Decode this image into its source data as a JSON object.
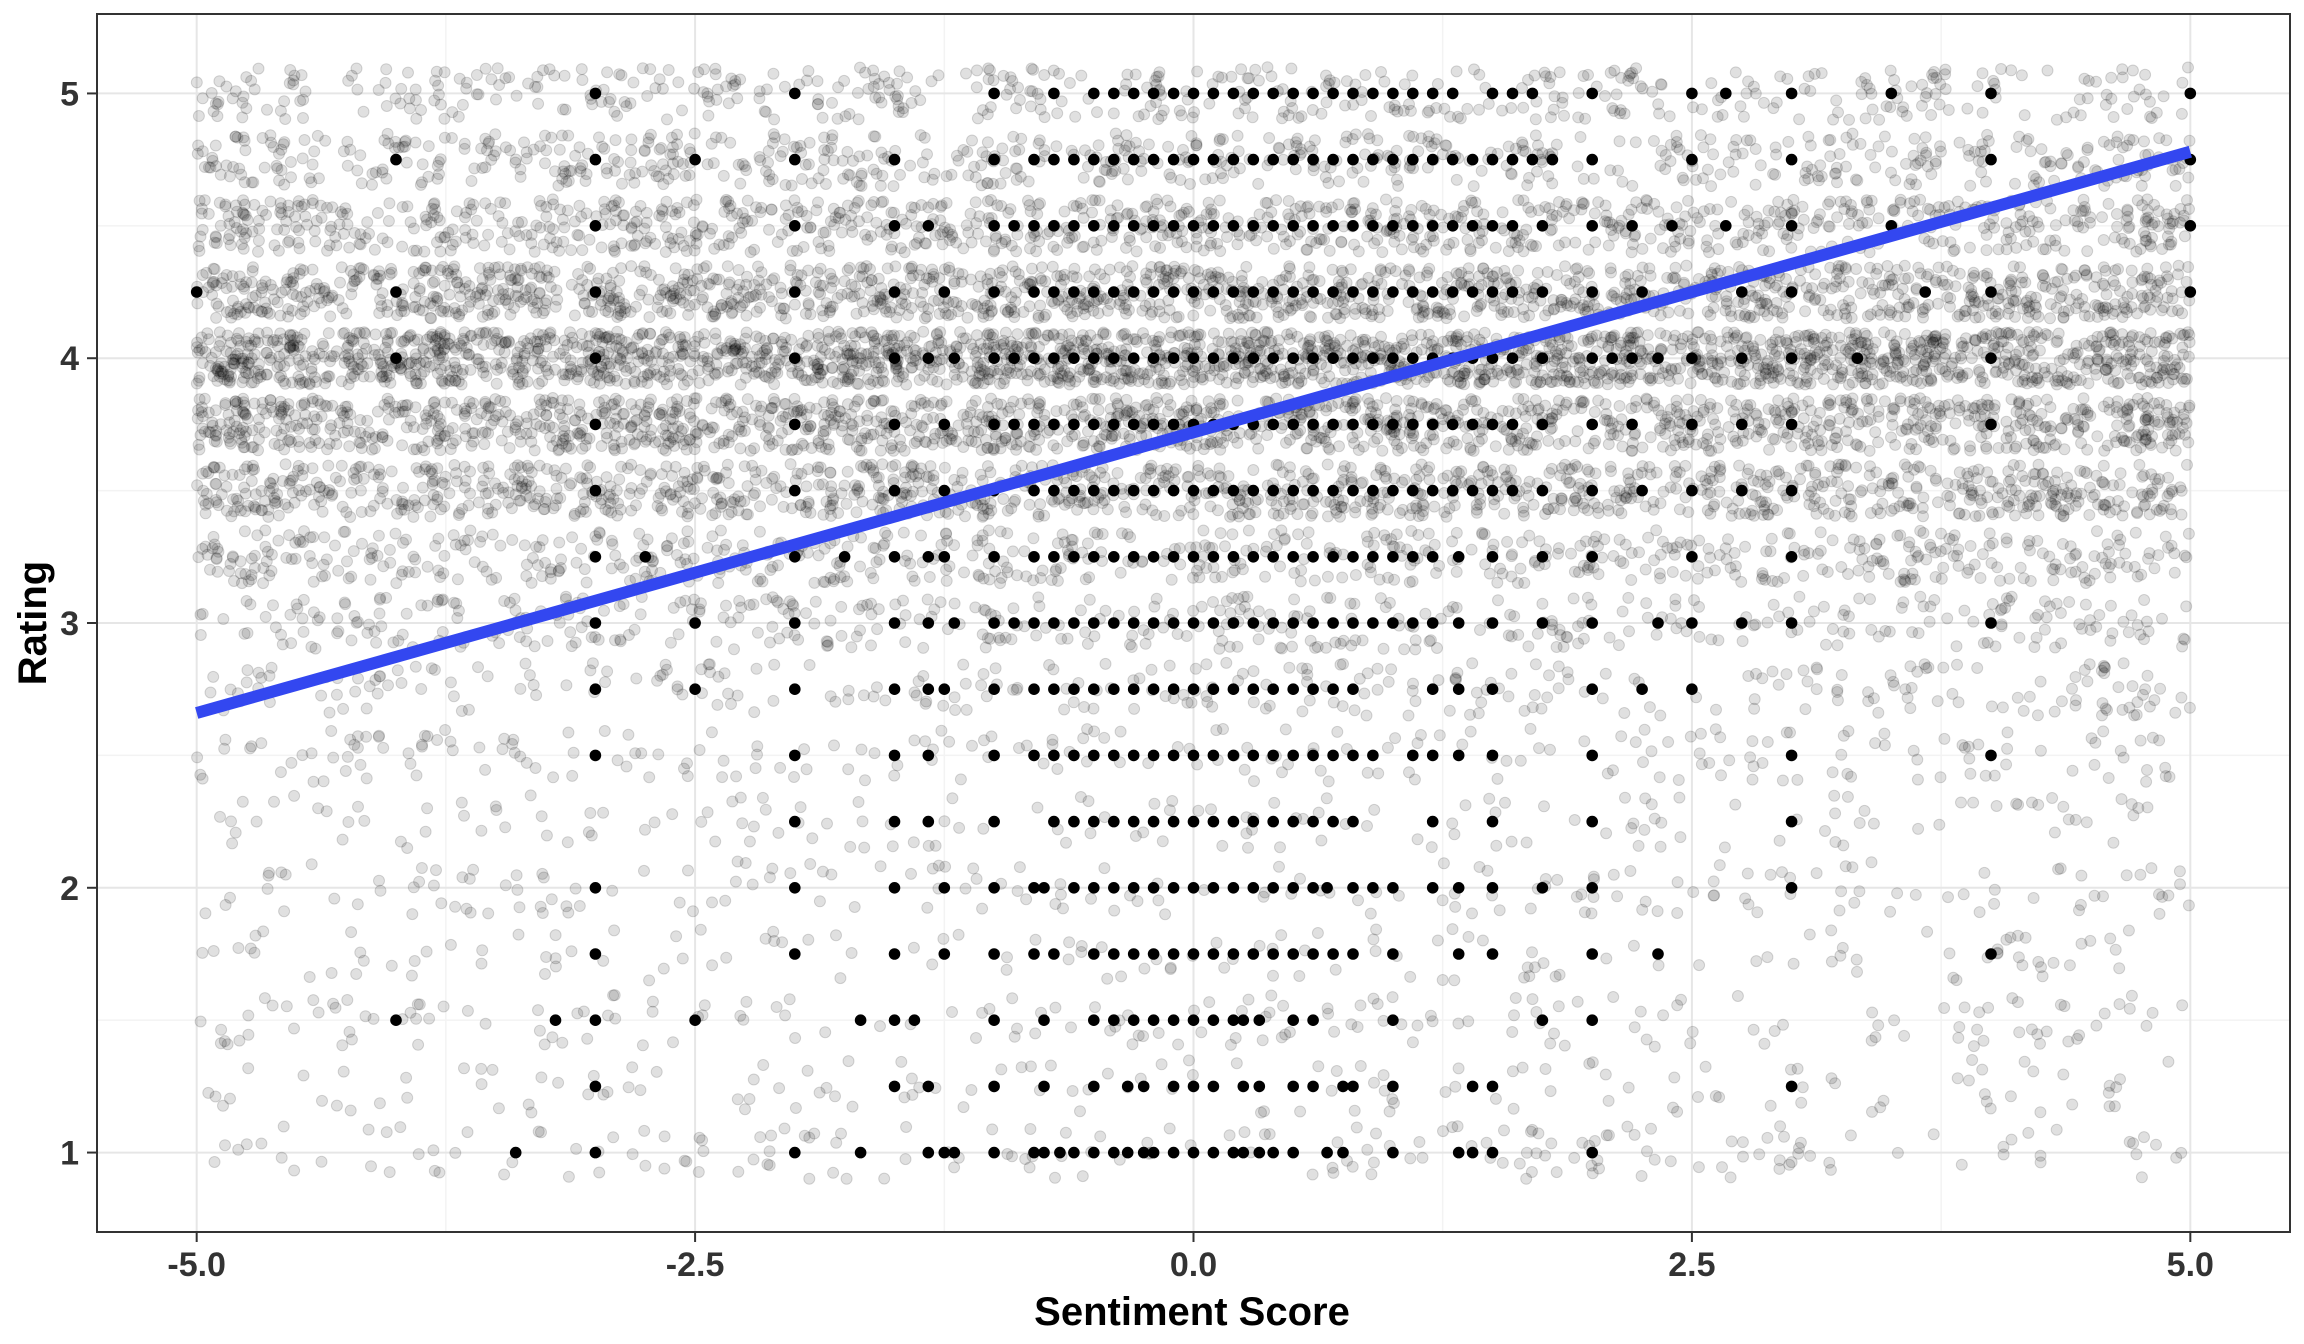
{
  "chart_data": {
    "type": "scatter",
    "title": "",
    "xlabel": "Sentiment Score",
    "ylabel": "Rating",
    "xlim": [
      -5.5,
      5.5
    ],
    "ylim": [
      0.7,
      5.3
    ],
    "x_ticks": [
      {
        "value": -5.0,
        "label": "-5.0"
      },
      {
        "value": -2.5,
        "label": "-2.5"
      },
      {
        "value": 0.0,
        "label": "0.0"
      },
      {
        "value": 2.5,
        "label": "2.5"
      },
      {
        "value": 5.0,
        "label": "5.0"
      }
    ],
    "y_ticks": [
      {
        "value": 1,
        "label": "1"
      },
      {
        "value": 2,
        "label": "2"
      },
      {
        "value": 3,
        "label": "3"
      },
      {
        "value": 4,
        "label": "4"
      },
      {
        "value": 5,
        "label": "5"
      }
    ],
    "grid": true,
    "colors": {
      "jitter_points": "#000000",
      "exact_points": "#000000",
      "trend_line": "#3347f0",
      "panel_border": "#333333",
      "grid_major": "#e6e6e6",
      "grid_minor": "#f3f3f3"
    },
    "trend_line": {
      "type": "linear",
      "x": [
        -5.0,
        5.0
      ],
      "y": [
        2.66,
        4.78
      ]
    },
    "exact_points": [
      {
        "y": 5.0,
        "x": [
          -3.0,
          -2.0,
          -1.0,
          -0.7,
          -0.5,
          -0.4,
          -0.3,
          -0.2,
          -0.1,
          0.0,
          0.1,
          0.2,
          0.3,
          0.4,
          0.5,
          0.6,
          0.7,
          0.8,
          0.9,
          1.0,
          1.1,
          1.2,
          1.3,
          1.5,
          1.6,
          1.7,
          2.0,
          2.5,
          2.67,
          3.0,
          3.5,
          4.0,
          5.0
        ]
      },
      {
        "y": 4.75,
        "x": [
          -4.0,
          -3.0,
          -2.5,
          -2.0,
          -1.5,
          -1.0,
          -0.8,
          -0.7,
          -0.6,
          -0.5,
          -0.4,
          -0.3,
          -0.2,
          -0.1,
          0.0,
          0.1,
          0.2,
          0.3,
          0.4,
          0.5,
          0.6,
          0.7,
          0.8,
          0.9,
          1.0,
          1.1,
          1.2,
          1.3,
          1.4,
          1.5,
          1.6,
          1.7,
          1.8,
          2.0,
          2.5,
          3.0,
          4.0,
          5.0
        ]
      },
      {
        "y": 4.5,
        "x": [
          -3.0,
          -2.0,
          -1.5,
          -1.33,
          -1.0,
          -0.9,
          -0.8,
          -0.7,
          -0.6,
          -0.5,
          -0.4,
          -0.3,
          -0.2,
          -0.1,
          0.0,
          0.1,
          0.2,
          0.3,
          0.4,
          0.5,
          0.6,
          0.7,
          0.8,
          0.9,
          1.0,
          1.1,
          1.2,
          1.3,
          1.4,
          1.5,
          1.6,
          1.75,
          2.0,
          2.2,
          2.4,
          2.67,
          3.0,
          3.5,
          5.0
        ]
      },
      {
        "y": 4.25,
        "x": [
          -5.0,
          -4.0,
          -3.0,
          -2.0,
          -1.5,
          -1.25,
          -1.0,
          -0.8,
          -0.7,
          -0.6,
          -0.5,
          -0.4,
          -0.3,
          -0.2,
          -0.1,
          0.0,
          0.1,
          0.2,
          0.3,
          0.4,
          0.5,
          0.6,
          0.7,
          0.8,
          0.9,
          1.0,
          1.1,
          1.2,
          1.3,
          1.4,
          1.5,
          1.6,
          1.75,
          2.0,
          2.25,
          2.5,
          2.75,
          3.0,
          3.67,
          4.0,
          5.0
        ]
      },
      {
        "y": 4.0,
        "x": [
          -4.0,
          -3.0,
          -2.0,
          -1.5,
          -1.33,
          -1.2,
          -1.0,
          -0.9,
          -0.8,
          -0.7,
          -0.6,
          -0.5,
          -0.4,
          -0.3,
          -0.2,
          -0.1,
          0.0,
          0.1,
          0.2,
          0.3,
          0.4,
          0.5,
          0.6,
          0.7,
          0.8,
          0.9,
          1.0,
          1.1,
          1.2,
          1.3,
          1.4,
          1.5,
          1.6,
          1.75,
          2.0,
          2.1,
          2.2,
          2.33,
          2.5,
          2.75,
          3.0,
          3.33,
          4.0
        ]
      },
      {
        "y": 3.75,
        "x": [
          -3.0,
          -2.0,
          -1.5,
          -1.25,
          -1.0,
          -0.9,
          -0.8,
          -0.7,
          -0.6,
          -0.5,
          -0.4,
          -0.3,
          -0.2,
          -0.1,
          0.0,
          0.1,
          0.2,
          0.3,
          0.4,
          0.5,
          0.6,
          0.7,
          0.8,
          0.9,
          1.0,
          1.1,
          1.2,
          1.3,
          1.4,
          1.5,
          1.6,
          1.75,
          2.0,
          2.2,
          2.5,
          2.75,
          3.0,
          4.0
        ]
      },
      {
        "y": 3.5,
        "x": [
          -3.0,
          -2.0,
          -1.5,
          -1.25,
          -1.0,
          -0.8,
          -0.7,
          -0.6,
          -0.5,
          -0.4,
          -0.3,
          -0.2,
          -0.1,
          0.0,
          0.1,
          0.2,
          0.3,
          0.4,
          0.5,
          0.6,
          0.7,
          0.8,
          0.9,
          1.0,
          1.1,
          1.2,
          1.3,
          1.4,
          1.5,
          1.6,
          1.75,
          2.0,
          2.25,
          2.5,
          2.75,
          3.0
        ]
      },
      {
        "y": 3.25,
        "x": [
          -3.0,
          -2.75,
          -2.0,
          -1.75,
          -1.5,
          -1.33,
          -1.25,
          -1.0,
          -0.8,
          -0.7,
          -0.6,
          -0.5,
          -0.4,
          -0.3,
          -0.2,
          -0.1,
          0.0,
          0.1,
          0.2,
          0.3,
          0.4,
          0.5,
          0.6,
          0.7,
          0.8,
          0.9,
          1.0,
          1.1,
          1.2,
          1.33,
          1.5,
          1.75,
          2.0,
          2.5,
          3.0
        ]
      },
      {
        "y": 3.0,
        "x": [
          -3.0,
          -2.5,
          -2.0,
          -1.5,
          -1.33,
          -1.2,
          -1.0,
          -0.9,
          -0.8,
          -0.7,
          -0.6,
          -0.5,
          -0.4,
          -0.3,
          -0.2,
          -0.1,
          0.0,
          0.1,
          0.2,
          0.3,
          0.4,
          0.5,
          0.6,
          0.7,
          0.8,
          0.9,
          1.0,
          1.1,
          1.2,
          1.33,
          1.5,
          1.75,
          2.0,
          2.33,
          2.5,
          2.75,
          3.0,
          4.0
        ]
      },
      {
        "y": 2.75,
        "x": [
          -3.0,
          -2.5,
          -2.0,
          -1.5,
          -1.33,
          -1.25,
          -1.0,
          -0.8,
          -0.7,
          -0.6,
          -0.5,
          -0.4,
          -0.3,
          -0.2,
          -0.1,
          0.0,
          0.1,
          0.2,
          0.3,
          0.4,
          0.5,
          0.6,
          0.7,
          0.8,
          1.2,
          1.33,
          1.5,
          2.0,
          2.25,
          2.5
        ]
      },
      {
        "y": 2.5,
        "x": [
          -3.0,
          -2.0,
          -1.5,
          -1.33,
          -1.0,
          -0.8,
          -0.7,
          -0.6,
          -0.5,
          -0.4,
          -0.3,
          -0.2,
          -0.1,
          0.0,
          0.1,
          0.2,
          0.3,
          0.4,
          0.5,
          0.6,
          0.7,
          0.8,
          0.9,
          1.1,
          1.2,
          1.33,
          1.5,
          2.0,
          3.0,
          4.0
        ]
      },
      {
        "y": 2.25,
        "x": [
          -2.0,
          -1.5,
          -1.33,
          -1.0,
          -0.7,
          -0.6,
          -0.5,
          -0.4,
          -0.3,
          -0.2,
          -0.1,
          0.0,
          0.1,
          0.2,
          0.3,
          0.4,
          0.5,
          0.6,
          0.7,
          0.8,
          1.2,
          1.5,
          2.0,
          3.0
        ]
      },
      {
        "y": 2.0,
        "x": [
          -3.0,
          -2.0,
          -1.5,
          -1.25,
          -1.0,
          -0.8,
          -0.75,
          -0.6,
          -0.5,
          -0.4,
          -0.3,
          -0.2,
          -0.1,
          0.0,
          0.1,
          0.2,
          0.3,
          0.4,
          0.5,
          0.6,
          0.67,
          0.8,
          0.9,
          1.0,
          1.2,
          1.33,
          1.5,
          1.75,
          2.0,
          3.0
        ]
      },
      {
        "y": 1.75,
        "x": [
          -3.0,
          -2.0,
          -1.5,
          -1.25,
          -1.0,
          -0.8,
          -0.7,
          -0.5,
          -0.4,
          -0.3,
          -0.2,
          -0.1,
          0.0,
          0.1,
          0.2,
          0.3,
          0.4,
          0.5,
          0.6,
          0.7,
          0.8,
          1.0,
          1.33,
          1.5,
          2.0,
          2.33,
          4.0
        ]
      },
      {
        "y": 1.5,
        "x": [
          -4.0,
          -3.2,
          -3.0,
          -2.5,
          -1.67,
          -1.5,
          -1.4,
          -1.0,
          -0.75,
          -0.5,
          -0.4,
          -0.3,
          -0.2,
          -0.1,
          0.0,
          0.1,
          0.2,
          0.25,
          0.33,
          0.5,
          0.6,
          1.0,
          1.75,
          2.0
        ]
      },
      {
        "y": 1.25,
        "x": [
          -3.0,
          -1.5,
          -1.33,
          -1.0,
          -0.75,
          -0.5,
          -0.33,
          -0.25,
          -0.1,
          0.0,
          0.1,
          0.25,
          0.33,
          0.5,
          0.6,
          0.75,
          0.8,
          1.0,
          1.4,
          1.5,
          3.0
        ]
      },
      {
        "y": 1.0,
        "x": [
          -3.4,
          -3.0,
          -2.0,
          -1.67,
          -1.33,
          -1.25,
          -1.2,
          -1.0,
          -0.8,
          -0.75,
          -0.67,
          -0.6,
          -0.5,
          -0.4,
          -0.33,
          -0.25,
          -0.2,
          -0.1,
          0.0,
          0.1,
          0.2,
          0.25,
          0.33,
          0.4,
          0.5,
          0.67,
          0.75,
          1.0,
          1.33,
          1.4,
          1.5,
          2.0
        ]
      }
    ],
    "jitter_distribution": {
      "rating_levels": [
        1.0,
        1.25,
        1.5,
        1.75,
        2.0,
        2.25,
        2.5,
        2.75,
        3.0,
        3.25,
        3.5,
        3.75,
        4.0,
        4.25,
        4.5,
        4.75,
        5.0
      ],
      "relative_density": [
        8,
        6,
        8,
        6,
        8,
        7,
        10,
        13,
        20,
        30,
        55,
        70,
        100,
        65,
        45,
        30,
        22
      ],
      "x_range": [
        -5.0,
        5.0
      ],
      "y_jitter": 0.1,
      "opacity": 0.12
    }
  }
}
